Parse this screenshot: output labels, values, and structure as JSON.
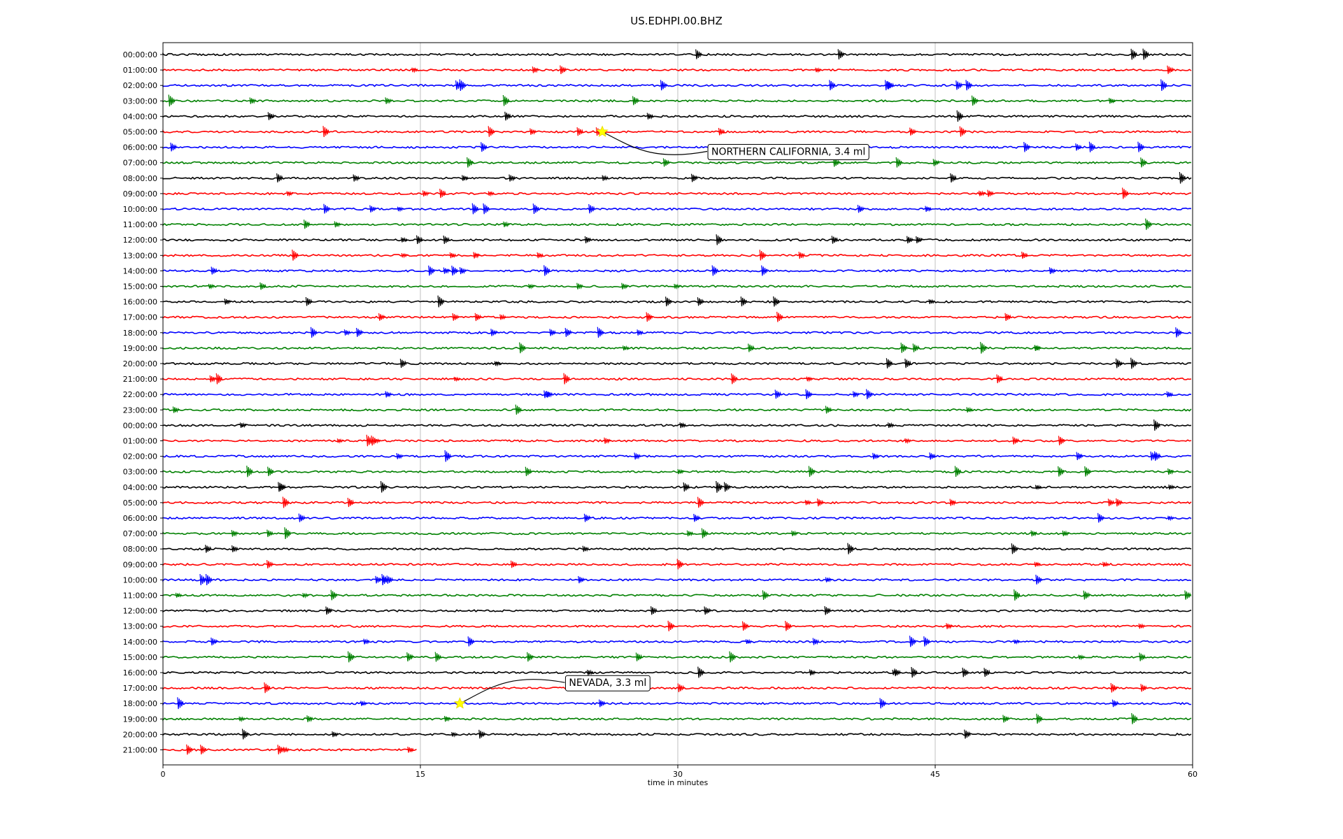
{
  "chart_data": {
    "type": "line",
    "title": "US.EDHPI.00.BHZ",
    "xlabel": "time in minutes",
    "xlim": [
      0,
      60
    ],
    "xticks": [
      0,
      15,
      30,
      45,
      60
    ],
    "grid": "vertical at x ticks",
    "colors": [
      "#000000",
      "#ff0000",
      "#0000ff",
      "#008000"
    ],
    "row_labels": [
      "00:00:00",
      "01:00:00",
      "02:00:00",
      "03:00:00",
      "04:00:00",
      "05:00:00",
      "06:00:00",
      "07:00:00",
      "08:00:00",
      "09:00:00",
      "10:00:00",
      "11:00:00",
      "12:00:00",
      "13:00:00",
      "14:00:00",
      "15:00:00",
      "16:00:00",
      "17:00:00",
      "18:00:00",
      "19:00:00",
      "20:00:00",
      "21:00:00",
      "22:00:00",
      "23:00:00",
      "00:00:00",
      "01:00:00",
      "02:00:00",
      "03:00:00",
      "04:00:00",
      "05:00:00",
      "06:00:00",
      "07:00:00",
      "08:00:00",
      "09:00:00",
      "10:00:00",
      "11:00:00",
      "12:00:00",
      "13:00:00",
      "14:00:00",
      "15:00:00",
      "16:00:00",
      "17:00:00",
      "18:00:00",
      "19:00:00",
      "20:00:00",
      "21:00:00"
    ],
    "last_row_end_minutes": 14.8,
    "events": [
      {
        "label": "NORTHERN CALIFORNIA, 3.4 ml",
        "row": 5,
        "minute": 25.6
      },
      {
        "label": "NEVADA, 3.3 ml",
        "row": 42,
        "minute": 17.3
      }
    ]
  }
}
